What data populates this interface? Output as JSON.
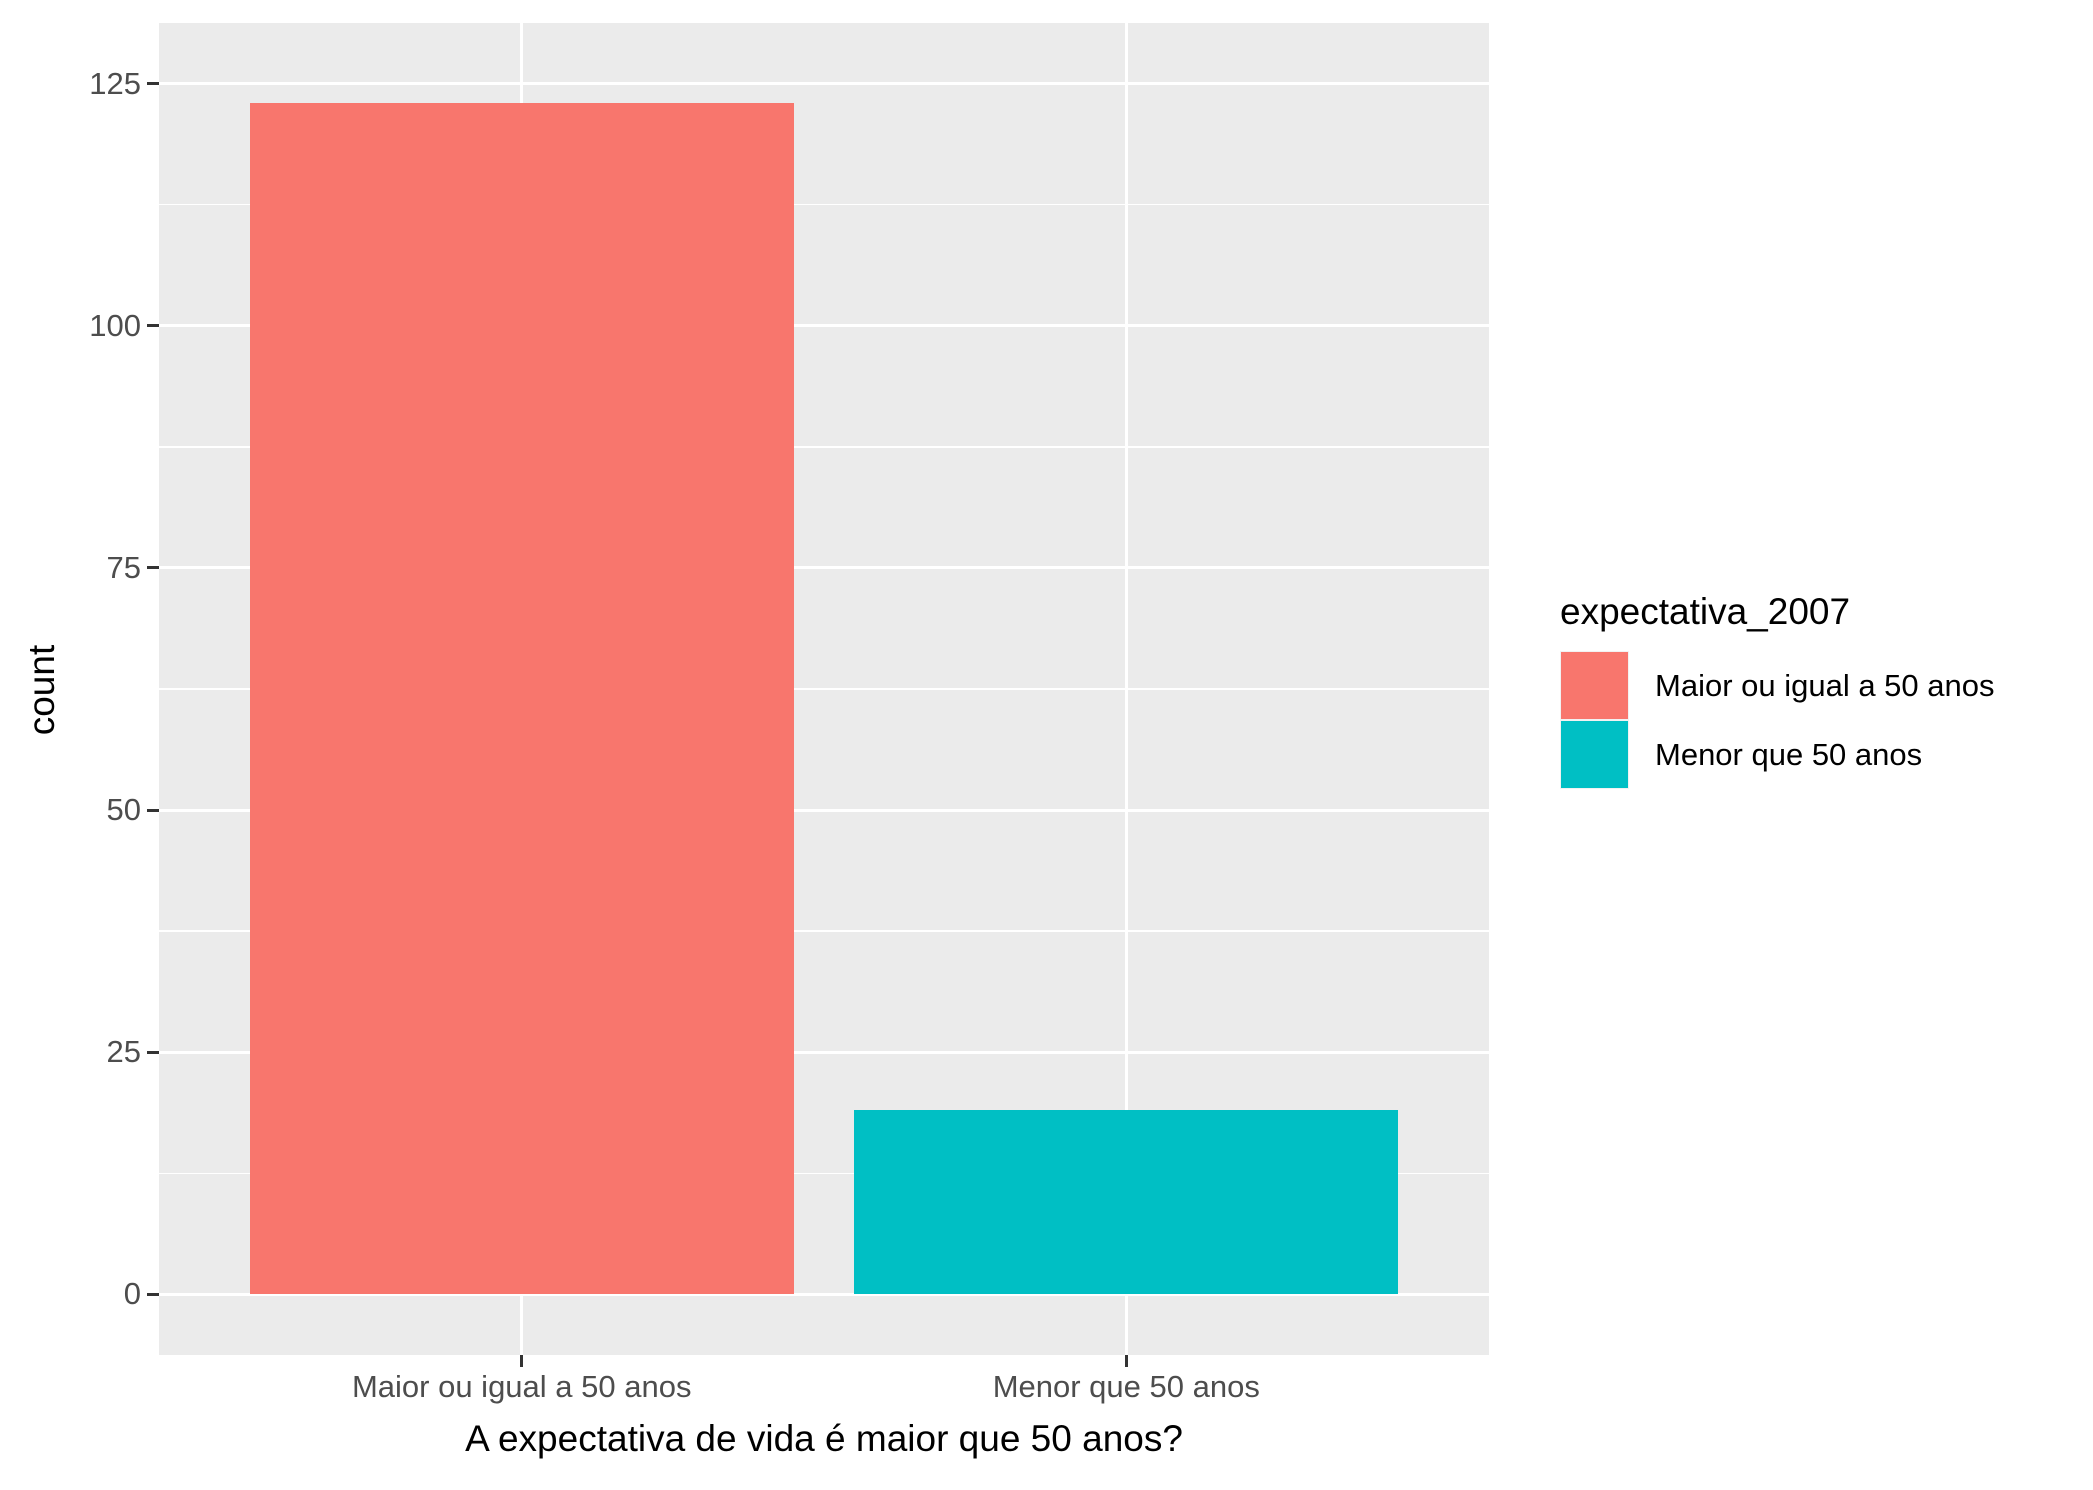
{
  "chart_data": {
    "type": "bar",
    "xlabel": "A expectativa de vida é maior que 50 anos?",
    "ylabel": "count",
    "categories": [
      "Maior ou igual a 50 anos",
      "Menor que 50 anos"
    ],
    "values": [
      123,
      19
    ],
    "bar_colors": [
      "#F8766D",
      "#00BFC4"
    ],
    "yticks": [
      0,
      25,
      50,
      75,
      100,
      125
    ],
    "ylim": [
      0,
      125
    ],
    "grid": "major and minor horizontal white lines, major vertical lines at category centers",
    "legend": {
      "position": "right",
      "title": "expectativa_2007",
      "entries": [
        {
          "label": "Maior ou igual a 50 anos",
          "color": "#F8766D"
        },
        {
          "label": "Menor que 50 anos",
          "color": "#00BFC4"
        }
      ]
    }
  },
  "theme": {
    "panel_background": "#EBEBEB",
    "grid_color": "#FFFFFF",
    "axis_text_color": "#4D4D4D",
    "axis_title_color": "#000000",
    "tick_mark_color": "#333333",
    "legend_key_background": "#F2F2F2",
    "figure_background": "#FFFFFF"
  }
}
